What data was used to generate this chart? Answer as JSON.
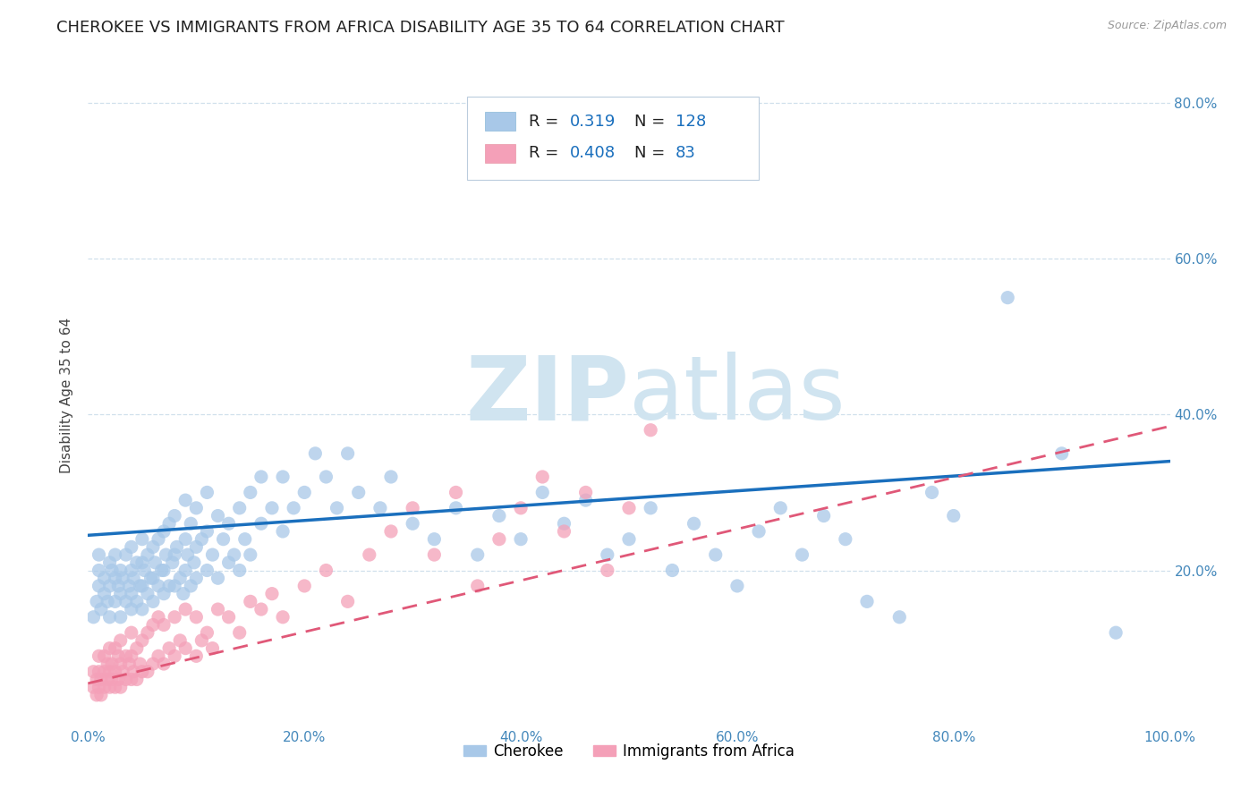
{
  "title": "CHEROKEE VS IMMIGRANTS FROM AFRICA DISABILITY AGE 35 TO 64 CORRELATION CHART",
  "source": "Source: ZipAtlas.com",
  "ylabel": "Disability Age 35 to 64",
  "xlim": [
    0,
    1.0
  ],
  "ylim": [
    0,
    0.85
  ],
  "xticks": [
    0.0,
    0.2,
    0.4,
    0.6,
    0.8,
    1.0
  ],
  "xticklabels": [
    "0.0%",
    "20.0%",
    "40.0%",
    "60.0%",
    "80.0%",
    "100.0%"
  ],
  "ytick_positions": [
    0.2,
    0.4,
    0.6,
    0.8
  ],
  "yticklabels": [
    "20.0%",
    "40.0%",
    "60.0%",
    "80.0%"
  ],
  "cherokee_color": "#a8c8e8",
  "africa_color": "#f4a0b8",
  "cherokee_line_color": "#1a6fbd",
  "africa_line_color": "#e05878",
  "watermark_color": "#d0e4f0",
  "cherokee_R": 0.319,
  "cherokee_N": 128,
  "africa_R": 0.408,
  "africa_N": 83,
  "background_color": "#ffffff",
  "grid_color": "#d0e0ec",
  "title_fontsize": 13,
  "axis_label_fontsize": 11,
  "tick_fontsize": 11,
  "legend_fontsize": 13,
  "cherokee_x": [
    0.005,
    0.008,
    0.01,
    0.01,
    0.01,
    0.012,
    0.015,
    0.015,
    0.018,
    0.02,
    0.02,
    0.02,
    0.022,
    0.025,
    0.025,
    0.025,
    0.028,
    0.03,
    0.03,
    0.03,
    0.032,
    0.035,
    0.035,
    0.038,
    0.04,
    0.04,
    0.04,
    0.04,
    0.042,
    0.045,
    0.045,
    0.048,
    0.05,
    0.05,
    0.05,
    0.05,
    0.052,
    0.055,
    0.055,
    0.058,
    0.06,
    0.06,
    0.06,
    0.062,
    0.065,
    0.065,
    0.068,
    0.07,
    0.07,
    0.07,
    0.072,
    0.075,
    0.075,
    0.078,
    0.08,
    0.08,
    0.08,
    0.082,
    0.085,
    0.088,
    0.09,
    0.09,
    0.09,
    0.092,
    0.095,
    0.095,
    0.098,
    0.1,
    0.1,
    0.1,
    0.105,
    0.11,
    0.11,
    0.11,
    0.115,
    0.12,
    0.12,
    0.125,
    0.13,
    0.13,
    0.135,
    0.14,
    0.14,
    0.145,
    0.15,
    0.15,
    0.16,
    0.16,
    0.17,
    0.18,
    0.18,
    0.19,
    0.2,
    0.21,
    0.22,
    0.23,
    0.24,
    0.25,
    0.27,
    0.28,
    0.3,
    0.32,
    0.34,
    0.36,
    0.38,
    0.4,
    0.42,
    0.44,
    0.46,
    0.48,
    0.5,
    0.52,
    0.54,
    0.56,
    0.58,
    0.6,
    0.62,
    0.64,
    0.66,
    0.68,
    0.7,
    0.72,
    0.75,
    0.78,
    0.8,
    0.85,
    0.9,
    0.95
  ],
  "cherokee_y": [
    0.14,
    0.16,
    0.18,
    0.2,
    0.22,
    0.15,
    0.17,
    0.19,
    0.16,
    0.14,
    0.18,
    0.21,
    0.2,
    0.16,
    0.19,
    0.22,
    0.18,
    0.14,
    0.17,
    0.2,
    0.19,
    0.16,
    0.22,
    0.18,
    0.15,
    0.17,
    0.2,
    0.23,
    0.19,
    0.16,
    0.21,
    0.18,
    0.15,
    0.18,
    0.21,
    0.24,
    0.2,
    0.17,
    0.22,
    0.19,
    0.16,
    0.19,
    0.23,
    0.21,
    0.18,
    0.24,
    0.2,
    0.17,
    0.2,
    0.25,
    0.22,
    0.18,
    0.26,
    0.21,
    0.18,
    0.22,
    0.27,
    0.23,
    0.19,
    0.17,
    0.2,
    0.24,
    0.29,
    0.22,
    0.18,
    0.26,
    0.21,
    0.19,
    0.23,
    0.28,
    0.24,
    0.2,
    0.25,
    0.3,
    0.22,
    0.19,
    0.27,
    0.24,
    0.21,
    0.26,
    0.22,
    0.2,
    0.28,
    0.24,
    0.22,
    0.3,
    0.26,
    0.32,
    0.28,
    0.25,
    0.32,
    0.28,
    0.3,
    0.35,
    0.32,
    0.28,
    0.35,
    0.3,
    0.28,
    0.32,
    0.26,
    0.24,
    0.28,
    0.22,
    0.27,
    0.24,
    0.3,
    0.26,
    0.29,
    0.22,
    0.24,
    0.28,
    0.2,
    0.26,
    0.22,
    0.18,
    0.25,
    0.28,
    0.22,
    0.27,
    0.24,
    0.16,
    0.14,
    0.3,
    0.27,
    0.55,
    0.35,
    0.12
  ],
  "africa_x": [
    0.005,
    0.005,
    0.008,
    0.008,
    0.01,
    0.01,
    0.01,
    0.012,
    0.012,
    0.015,
    0.015,
    0.015,
    0.018,
    0.018,
    0.02,
    0.02,
    0.02,
    0.022,
    0.022,
    0.025,
    0.025,
    0.025,
    0.028,
    0.028,
    0.03,
    0.03,
    0.03,
    0.032,
    0.035,
    0.035,
    0.038,
    0.04,
    0.04,
    0.04,
    0.042,
    0.045,
    0.045,
    0.048,
    0.05,
    0.05,
    0.055,
    0.055,
    0.06,
    0.06,
    0.065,
    0.065,
    0.07,
    0.07,
    0.075,
    0.08,
    0.08,
    0.085,
    0.09,
    0.09,
    0.1,
    0.1,
    0.105,
    0.11,
    0.115,
    0.12,
    0.13,
    0.14,
    0.15,
    0.16,
    0.17,
    0.18,
    0.2,
    0.22,
    0.24,
    0.26,
    0.28,
    0.3,
    0.32,
    0.34,
    0.36,
    0.38,
    0.4,
    0.42,
    0.44,
    0.46,
    0.48,
    0.5,
    0.52
  ],
  "africa_y": [
    0.05,
    0.07,
    0.04,
    0.06,
    0.05,
    0.07,
    0.09,
    0.04,
    0.06,
    0.05,
    0.07,
    0.09,
    0.06,
    0.08,
    0.05,
    0.07,
    0.1,
    0.06,
    0.08,
    0.05,
    0.07,
    0.1,
    0.06,
    0.09,
    0.05,
    0.08,
    0.11,
    0.07,
    0.06,
    0.09,
    0.08,
    0.06,
    0.09,
    0.12,
    0.07,
    0.06,
    0.1,
    0.08,
    0.07,
    0.11,
    0.07,
    0.12,
    0.08,
    0.13,
    0.09,
    0.14,
    0.08,
    0.13,
    0.1,
    0.09,
    0.14,
    0.11,
    0.1,
    0.15,
    0.09,
    0.14,
    0.11,
    0.12,
    0.1,
    0.15,
    0.14,
    0.12,
    0.16,
    0.15,
    0.17,
    0.14,
    0.18,
    0.2,
    0.16,
    0.22,
    0.25,
    0.28,
    0.22,
    0.3,
    0.18,
    0.24,
    0.28,
    0.32,
    0.25,
    0.3,
    0.2,
    0.28,
    0.38
  ]
}
